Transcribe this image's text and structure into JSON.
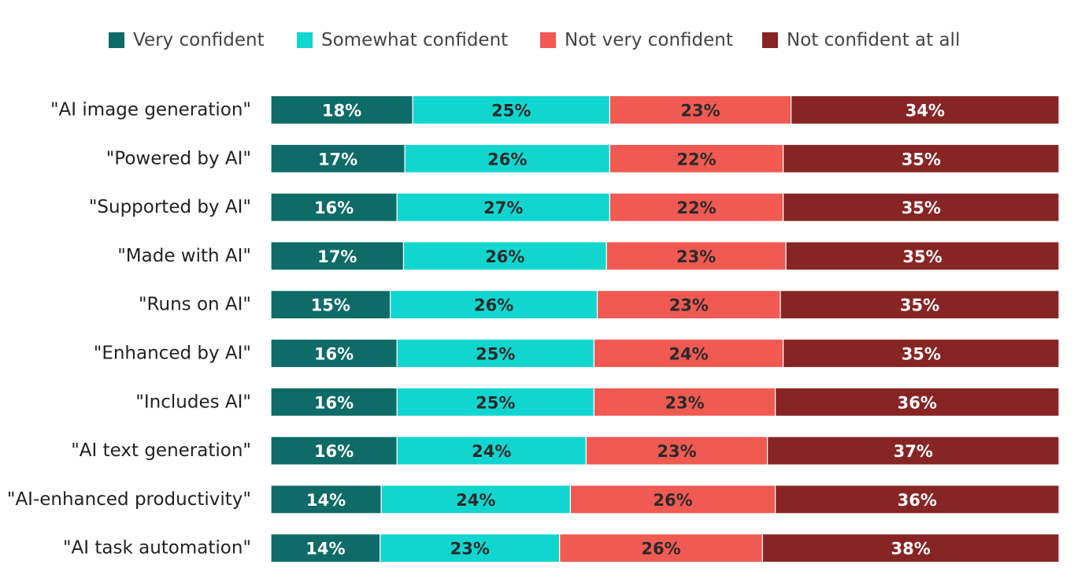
{
  "chart_data": {
    "type": "bar",
    "orientation": "horizontal",
    "stacked": true,
    "normalized_to_100": true,
    "title": "",
    "xlabel": "",
    "ylabel": "",
    "grid": false,
    "legend_position": "top",
    "value_suffix": "%",
    "categories": [
      "\"AI image generation\"",
      "\"Powered by AI\"",
      "\"Supported by AI\"",
      "\"Made with AI\"",
      "\"Runs on AI\"",
      "\"Enhanced by AI\"",
      "\"Includes AI\"",
      "\"AI text generation\"",
      "\"AI-enhanced productivity\"",
      "\"AI task automation\""
    ],
    "series": [
      {
        "name": "Very confident",
        "color": "#0e6b67",
        "label_color": "#ffffff",
        "values": [
          18,
          17,
          16,
          17,
          15,
          16,
          16,
          16,
          14,
          14
        ]
      },
      {
        "name": "Somewhat confident",
        "color": "#11d6cf",
        "label_color": "#2a2a2a",
        "values": [
          25,
          26,
          27,
          26,
          26,
          25,
          25,
          24,
          24,
          23
        ]
      },
      {
        "name": "Not very confident",
        "color": "#f05a52",
        "label_color": "#2a2a2a",
        "values": [
          23,
          22,
          22,
          23,
          23,
          24,
          23,
          23,
          26,
          26
        ]
      },
      {
        "name": "Not confident at all",
        "color": "#872524",
        "label_color": "#ffffff",
        "values": [
          34,
          35,
          35,
          35,
          35,
          35,
          36,
          37,
          36,
          38
        ]
      }
    ]
  }
}
